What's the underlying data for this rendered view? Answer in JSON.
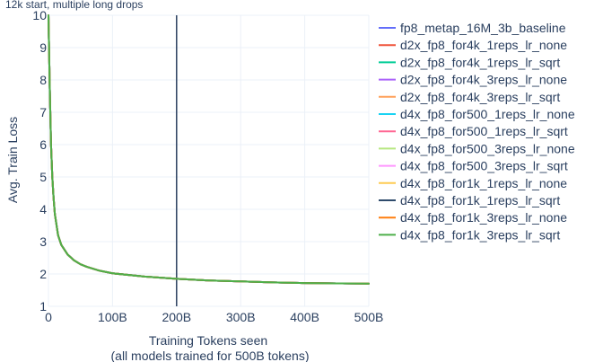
{
  "chart_data": {
    "type": "line",
    "title": "",
    "annotation": "12k start, multiple long drops",
    "xlabel": "Training Tokens seen",
    "xlabel_sub": "(all models trained for 500B tokens)",
    "ylabel": "Avg. Train Loss",
    "xlim": [
      0,
      500
    ],
    "ylim": [
      1,
      10
    ],
    "x_ticks": [
      0,
      100,
      200,
      300,
      400,
      500
    ],
    "x_tick_labels": [
      "0",
      "100B",
      "200B",
      "300B",
      "400B",
      "500B"
    ],
    "y_ticks": [
      1,
      2,
      3,
      4,
      5,
      6,
      7,
      8,
      9,
      10
    ],
    "y_tick_labels": [
      "1",
      "2",
      "3",
      "4",
      "5",
      "6",
      "7",
      "8",
      "9",
      "10"
    ],
    "grid": true,
    "legend_position": "right",
    "vertical_line": {
      "x": 200,
      "color": "#2a3f5f"
    },
    "x": [
      0,
      2,
      4,
      6,
      8,
      10,
      15,
      20,
      30,
      40,
      50,
      60,
      80,
      100,
      150,
      200,
      250,
      300,
      350,
      400,
      450,
      500
    ],
    "series": [
      {
        "name": "fp8_metap_16M_3b_baseline",
        "color": "#636efa",
        "values": [
          10,
          7.8,
          6.0,
          5.0,
          4.35,
          3.85,
          3.2,
          2.9,
          2.6,
          2.42,
          2.3,
          2.22,
          2.1,
          2.02,
          1.92,
          1.85,
          1.8,
          1.77,
          1.74,
          1.72,
          1.71,
          1.7
        ]
      },
      {
        "name": "d2x_fp8_for4k_1reps_lr_none",
        "color": "#ef553b",
        "values": [
          10,
          7.8,
          6.0,
          5.0,
          4.35,
          3.85,
          3.2,
          2.9,
          2.6,
          2.42,
          2.3,
          2.22,
          2.1,
          2.02,
          1.92,
          1.85,
          1.8,
          1.77,
          1.74,
          1.72,
          1.71,
          1.7
        ]
      },
      {
        "name": "d2x_fp8_for4k_1reps_lr_sqrt",
        "color": "#00cc96",
        "values": [
          10,
          7.8,
          6.0,
          5.0,
          4.35,
          3.85,
          3.2,
          2.9,
          2.6,
          2.42,
          2.3,
          2.22,
          2.1,
          2.02,
          1.92,
          1.85,
          1.8,
          1.77,
          1.74,
          1.72,
          1.71,
          1.7
        ]
      },
      {
        "name": "d2x_fp8_for4k_3reps_lr_none",
        "color": "#ab63fa",
        "values": [
          10,
          7.8,
          6.0,
          5.0,
          4.35,
          3.85,
          3.2,
          2.9,
          2.6,
          2.42,
          2.3,
          2.22,
          2.1,
          2.02,
          1.92,
          1.85,
          1.8,
          1.77,
          1.74,
          1.72,
          1.71,
          1.7
        ]
      },
      {
        "name": "d2x_fp8_for4k_3reps_lr_sqrt",
        "color": "#ffa15a",
        "values": [
          10,
          7.8,
          6.0,
          5.0,
          4.35,
          3.85,
          3.2,
          2.9,
          2.6,
          2.42,
          2.3,
          2.22,
          2.1,
          2.02,
          1.92,
          1.85,
          1.8,
          1.77,
          1.74,
          1.72,
          1.71,
          1.7
        ]
      },
      {
        "name": "d4x_fp8_for500_1reps_lr_none",
        "color": "#19d3f3",
        "values": [
          10,
          7.8,
          6.0,
          5.0,
          4.35,
          3.85,
          3.2,
          2.9,
          2.6,
          2.42,
          2.3,
          2.22,
          2.1,
          2.02,
          1.92,
          1.85,
          1.8,
          1.77,
          1.74,
          1.72,
          1.71,
          1.7
        ]
      },
      {
        "name": "d4x_fp8_for500_1reps_lr_sqrt",
        "color": "#ff6692",
        "values": [
          10,
          7.8,
          6.0,
          5.0,
          4.35,
          3.85,
          3.2,
          2.9,
          2.6,
          2.42,
          2.3,
          2.22,
          2.1,
          2.02,
          1.92,
          1.85,
          1.8,
          1.77,
          1.74,
          1.72,
          1.71,
          1.7
        ]
      },
      {
        "name": "d4x_fp8_for500_3reps_lr_none",
        "color": "#b6e880",
        "values": [
          10,
          7.8,
          6.0,
          5.0,
          4.35,
          3.85,
          3.2,
          2.9,
          2.6,
          2.42,
          2.3,
          2.22,
          2.1,
          2.02,
          1.92,
          1.85,
          1.8,
          1.77,
          1.74,
          1.72,
          1.71,
          1.7
        ]
      },
      {
        "name": "d4x_fp8_for500_3reps_lr_sqrt",
        "color": "#ff97ff",
        "values": [
          10,
          7.8,
          6.0,
          5.0,
          4.35,
          3.85,
          3.2,
          2.9,
          2.6,
          2.42,
          2.3,
          2.22,
          2.1,
          2.02,
          1.92,
          1.85,
          1.8,
          1.77,
          1.74,
          1.72,
          1.71,
          1.7
        ]
      },
      {
        "name": "d4x_fp8_for1k_1reps_lr_none",
        "color": "#fecb52",
        "values": [
          10,
          7.8,
          6.0,
          5.0,
          4.35,
          3.85,
          3.2,
          2.9,
          2.6,
          2.42,
          2.3,
          2.22,
          2.1,
          2.02,
          1.92,
          1.85,
          1.8,
          1.77,
          1.74,
          1.72,
          1.71,
          1.7
        ]
      },
      {
        "name": "d4x_fp8_for1k_1reps_lr_sqrt",
        "color": "#2f4b6c",
        "values": [
          10,
          7.8,
          6.0,
          5.0,
          4.35,
          3.85,
          3.2,
          2.9,
          2.6,
          2.42,
          2.3,
          2.22,
          2.1,
          2.02,
          1.92,
          1.85,
          1.8,
          1.77,
          1.74,
          1.72,
          1.71,
          1.7
        ]
      },
      {
        "name": "d4x_fp8_for1k_3reps_lr_none",
        "color": "#ff7f0e",
        "values": [
          10,
          7.8,
          6.0,
          5.0,
          4.35,
          3.85,
          3.2,
          2.9,
          2.6,
          2.42,
          2.3,
          2.22,
          2.1,
          2.02,
          1.92,
          1.85,
          1.8,
          1.77,
          1.74,
          1.72,
          1.71,
          1.7
        ]
      },
      {
        "name": "d4x_fp8_for1k_3reps_lr_sqrt",
        "color": "#4daf4a",
        "values": [
          10,
          7.8,
          6.0,
          5.0,
          4.35,
          3.85,
          3.2,
          2.9,
          2.6,
          2.42,
          2.3,
          2.22,
          2.1,
          2.02,
          1.92,
          1.85,
          1.8,
          1.77,
          1.74,
          1.72,
          1.71,
          1.7
        ]
      }
    ]
  }
}
